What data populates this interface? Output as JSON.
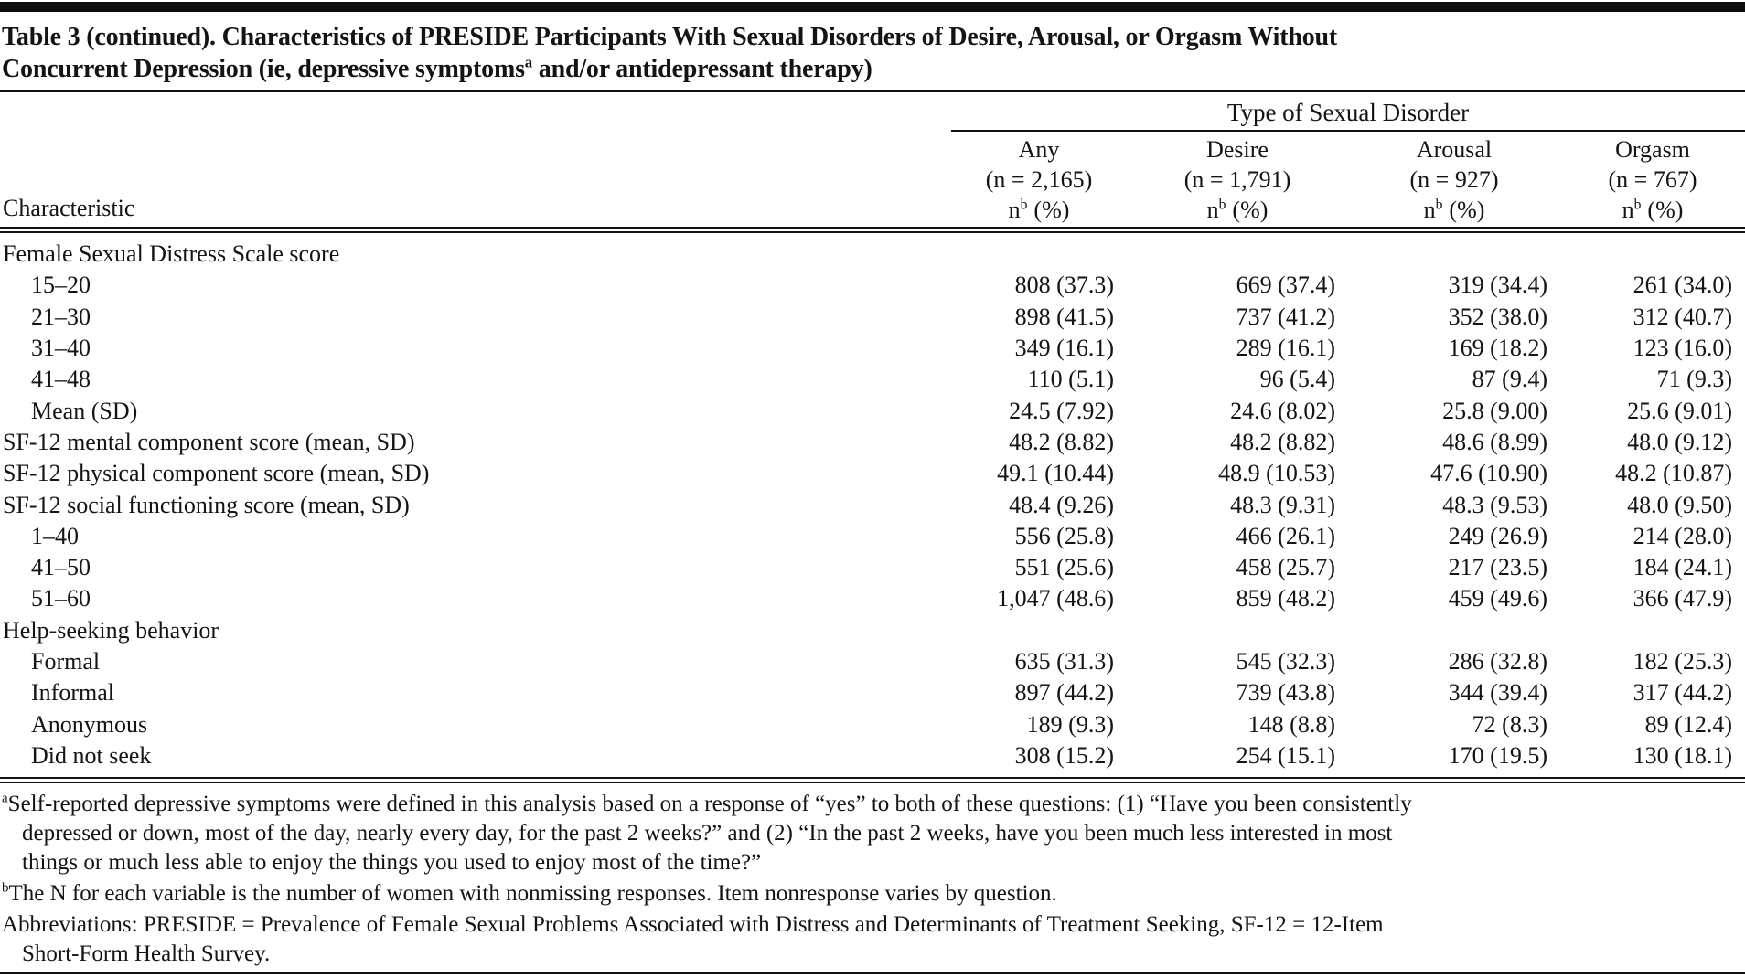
{
  "title": {
    "line1": "Table 3 (continued). Characteristics of PRESIDE Participants With Sexual Disorders of Desire, Arousal, or Orgasm Without",
    "line2_pre": "Concurrent Depression (ie, depressive symptoms",
    "line2_sup": "a",
    "line2_post": " and/or antidepressant therapy)"
  },
  "table": {
    "spanner": "Type of Sexual Disorder",
    "characteristic_header": "Characteristic",
    "columns": [
      {
        "name": "Any",
        "n": "(n = 2,165)",
        "stat_base": "n",
        "stat_sup": "b",
        "stat_rest": "(%)"
      },
      {
        "name": "Desire",
        "n": "(n = 1,791)",
        "stat_base": "n",
        "stat_sup": "b",
        "stat_rest": "(%)"
      },
      {
        "name": "Arousal",
        "n": "(n = 927)",
        "stat_base": "n",
        "stat_sup": "b",
        "stat_rest": "(%)"
      },
      {
        "name": "Orgasm",
        "n": "(n = 767)",
        "stat_base": "n",
        "stat_sup": "b",
        "stat_rest": "(%)"
      }
    ],
    "rows": [
      {
        "label": "Female Sexual Distress Scale score"
      },
      {
        "label": "15–20",
        "values": [
          "808 (37.3)",
          "669 (37.4)",
          "319 (34.4)",
          "261 (34.0)"
        ]
      },
      {
        "label": "21–30",
        "values": [
          "898 (41.5)",
          "737 (41.2)",
          "352 (38.0)",
          "312 (40.7)"
        ]
      },
      {
        "label": "31–40",
        "values": [
          "349 (16.1)",
          "289 (16.1)",
          "169 (18.2)",
          "123 (16.0)"
        ]
      },
      {
        "label": "41–48",
        "values": [
          "110 (5.1)",
          "96 (5.4)",
          "87 (9.4)",
          "71 (9.3)"
        ]
      },
      {
        "label": "Mean (SD)",
        "values": [
          "24.5 (7.92)",
          "24.6 (8.02)",
          "25.8 (9.00)",
          "25.6 (9.01)"
        ]
      },
      {
        "label": "SF-12 mental component score (mean, SD)",
        "values": [
          "48.2 (8.82)",
          "48.2 (8.82)",
          "48.6 (8.99)",
          "48.0 (9.12)"
        ]
      },
      {
        "label": "SF-12 physical component score (mean, SD)",
        "values": [
          "49.1 (10.44)",
          "48.9 (10.53)",
          "47.6 (10.90)",
          "48.2 (10.87)"
        ]
      },
      {
        "label": "SF-12 social functioning score (mean, SD)",
        "values": [
          "48.4 (9.26)",
          "48.3 (9.31)",
          "48.3 (9.53)",
          "48.0 (9.50)"
        ]
      },
      {
        "label": "1–40",
        "values": [
          "556 (25.8)",
          "466 (26.1)",
          "249 (26.9)",
          "214 (28.0)"
        ]
      },
      {
        "label": "41–50",
        "values": [
          "551 (25.6)",
          "458 (25.7)",
          "217 (23.5)",
          "184 (24.1)"
        ]
      },
      {
        "label": "51–60",
        "values": [
          "1,047 (48.6)",
          "859 (48.2)",
          "459 (49.6)",
          "366 (47.9)"
        ]
      },
      {
        "label": "Help-seeking behavior"
      },
      {
        "label": "Formal",
        "values": [
          "635 (31.3)",
          "545 (32.3)",
          "286 (32.8)",
          "182 (25.3)"
        ]
      },
      {
        "label": "Informal",
        "values": [
          "897 (44.2)",
          "739 (43.8)",
          "344 (39.4)",
          "317 (44.2)"
        ]
      },
      {
        "label": "Anonymous",
        "values": [
          "189 (9.3)",
          "148 (8.8)",
          "72 (8.3)",
          "89 (12.4)"
        ]
      },
      {
        "label": "Did not seek",
        "values": [
          "308 (15.2)",
          "254 (15.1)",
          "170 (19.5)",
          "130 (18.1)"
        ]
      }
    ]
  },
  "footnotes": {
    "a_sup": "a",
    "a_lines": [
      "Self-reported depressive symptoms were defined in this analysis based on a response of “yes” to both of these questions: (1) “Have you been consistently",
      "depressed or down, most of the day, nearly every day, for the past 2 weeks?” and (2) “In the past 2 weeks, have you been much less interested in most",
      "things or much less able to enjoy the things you used to enjoy most of the time?”"
    ],
    "b_sup": "b",
    "b_line": "The N for each variable is the number of women with nonmissing responses. Item nonresponse varies by question.",
    "abbrev_lines": [
      "Abbreviations: PRESIDE = Prevalence of Female Sexual Problems Associated with Distress and Determinants of Treatment Seeking, SF-12 = 12-Item",
      "Short-Form Health Survey."
    ]
  }
}
